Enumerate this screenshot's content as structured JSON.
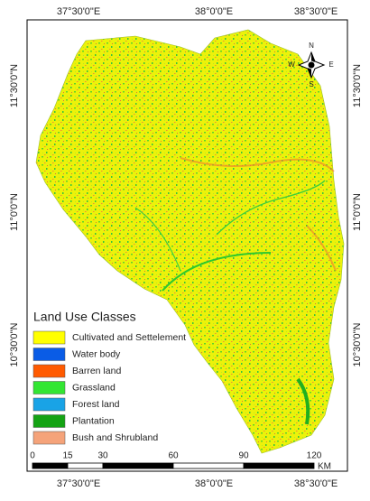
{
  "graticule": {
    "top": [
      "37°30'0\"E",
      "38°0'0\"E",
      "38°30'0\"E"
    ],
    "bottom": [
      "37°30'0\"E",
      "38°0'0\"E",
      "38°30'0\"E"
    ],
    "left": [
      "11°30'0\"N",
      "11°0'0\"N",
      "10°30'0\"N"
    ],
    "right": [
      "11°30'0\"N",
      "11°0'0\"N",
      "10°30'0\"N"
    ]
  },
  "legend": {
    "title": "Land Use Classes",
    "items": [
      {
        "label": "Cultivated and Settelement",
        "color": "#ffff00"
      },
      {
        "label": "Water body",
        "color": "#0a5ce6"
      },
      {
        "label": "Barren land",
        "color": "#ff5a00"
      },
      {
        "label": "Grassland",
        "color": "#33e633"
      },
      {
        "label": "Forest land",
        "color": "#19a3e6"
      },
      {
        "label": "Plantation",
        "color": "#14a314"
      },
      {
        "label": "Bush and Shrubland",
        "color": "#f5a37a"
      }
    ]
  },
  "scale_bar": {
    "ticks": [
      0,
      15,
      30,
      60,
      90,
      120
    ],
    "unit": "KM"
  },
  "compass": {
    "n": "N",
    "s": "S",
    "e": "E",
    "w": "W"
  }
}
